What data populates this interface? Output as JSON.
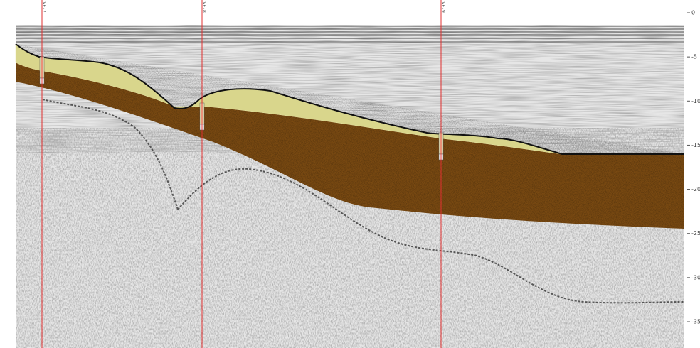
{
  "section": {
    "wells": [
      {
        "label": "VE77"
      },
      {
        "label": "VE78"
      },
      {
        "label": "VE79"
      }
    ],
    "depth_ticks": [
      0,
      -5,
      -10,
      -15,
      -20,
      -25,
      -30,
      -35
    ]
  }
}
